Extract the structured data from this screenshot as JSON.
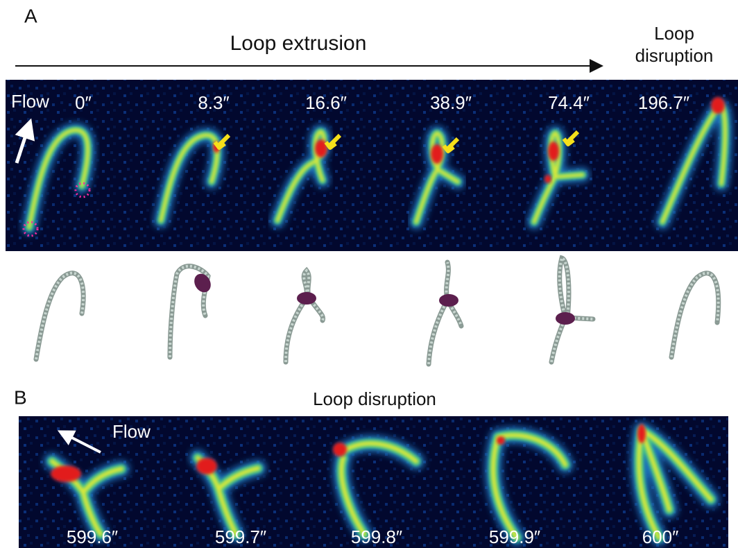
{
  "panel_a": {
    "label": "A",
    "header": "Loop extrusion",
    "header_right": [
      "Loop",
      "disruption"
    ],
    "flow_label": "Flow",
    "times": [
      "0″",
      "8.3″",
      "16.6″",
      "38.9″",
      "74.4″",
      "196.7″"
    ]
  },
  "panel_b": {
    "label": "B",
    "header": "Loop disruption",
    "flow_label": "Flow",
    "times": [
      "599.6″",
      "599.7″",
      "599.8″",
      "599.9″",
      "600″"
    ]
  }
}
